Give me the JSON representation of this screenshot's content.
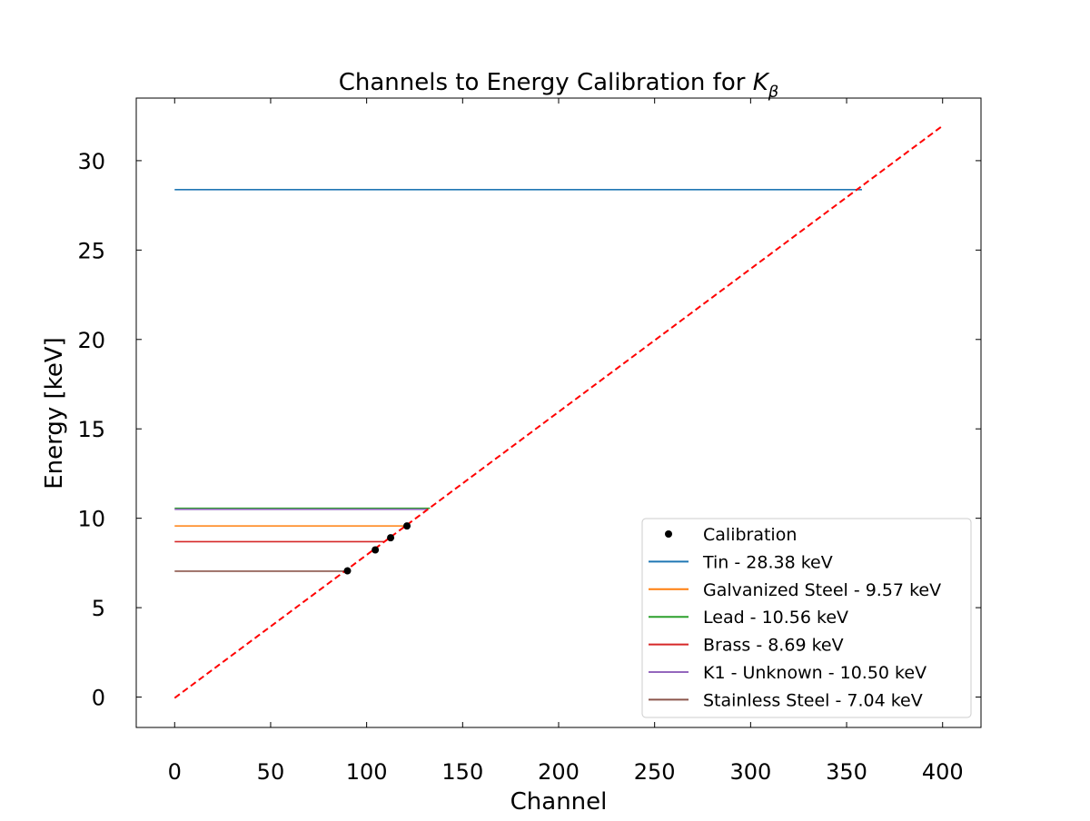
{
  "chart_data": {
    "type": "line",
    "title": "Channels to Energy Calibration for ",
    "title_symbol": "K",
    "title_subscript": "β",
    "xlabel": "Channel",
    "ylabel": "Energy [keV]",
    "xlim": [
      -20,
      420
    ],
    "ylim": [
      -1.7,
      33.5
    ],
    "xticks": [
      0,
      50,
      100,
      150,
      200,
      250,
      300,
      350,
      400
    ],
    "yticks": [
      0,
      5,
      10,
      15,
      20,
      25,
      30
    ],
    "ticks_direction": "in",
    "grid": false,
    "legend_position": "lower right",
    "fit_line": {
      "style": "dashed",
      "color": "#ff0000",
      "x": [
        0,
        400
      ],
      "y": [
        -0.05,
        31.95
      ]
    },
    "series": [
      {
        "name": "Calibration",
        "kind": "scatter",
        "color": "#000000",
        "x": [
          90,
          104.5,
          112.5,
          121
        ],
        "y": [
          7.06,
          8.23,
          8.91,
          9.57
        ]
      },
      {
        "name": "Tin - 28.38 keV",
        "kind": "hline",
        "color": "#1f77b4",
        "x": [
          0,
          358
        ],
        "y": 28.38
      },
      {
        "name": "Galvanized Steel - 9.57 keV",
        "kind": "hline",
        "color": "#ff7f0e",
        "x": [
          0,
          122
        ],
        "y": 9.57
      },
      {
        "name": "Lead - 10.56 keV",
        "kind": "hline",
        "color": "#2ca02c",
        "x": [
          0,
          133
        ],
        "y": 10.56
      },
      {
        "name": "Brass - 8.69 keV",
        "kind": "hline",
        "color": "#d62728",
        "x": [
          0,
          109
        ],
        "y": 8.69
      },
      {
        "name": "K1 - Unknown - 10.50 keV",
        "kind": "hline",
        "color": "#9467bd",
        "x": [
          0,
          132
        ],
        "y": 10.5
      },
      {
        "name": "Stainless Steel - 7.04 keV",
        "kind": "hline",
        "color": "#8c564b",
        "x": [
          0,
          89
        ],
        "y": 7.04
      }
    ]
  }
}
